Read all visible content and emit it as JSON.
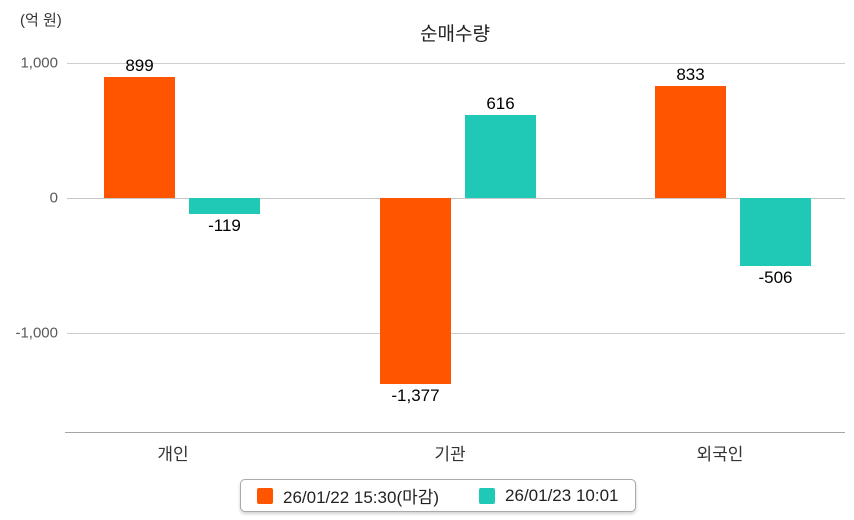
{
  "chart_data": {
    "type": "bar",
    "title": "순매수량",
    "unit_label": "(억 원)",
    "categories": [
      "개인",
      "기관",
      "외국인"
    ],
    "series": [
      {
        "name": "26/01/22 15:30(마감)",
        "color": "#FF5500",
        "values": [
          899,
          -1377,
          833
        ]
      },
      {
        "name": "26/01/23 10:01",
        "color": "#1FC9B6",
        "values": [
          -119,
          616,
          -506
        ]
      }
    ],
    "value_labels": [
      [
        "899",
        "-1,377",
        "833"
      ],
      [
        "-119",
        "616",
        "-506"
      ]
    ],
    "y_ticks": [
      {
        "label": "1,000",
        "value": 1000
      },
      {
        "label": "0",
        "value": 0
      },
      {
        "label": "-1,000",
        "value": -1000
      }
    ],
    "ylim": [
      -1500,
      1050
    ],
    "grid": true,
    "legend_position": "bottom"
  }
}
